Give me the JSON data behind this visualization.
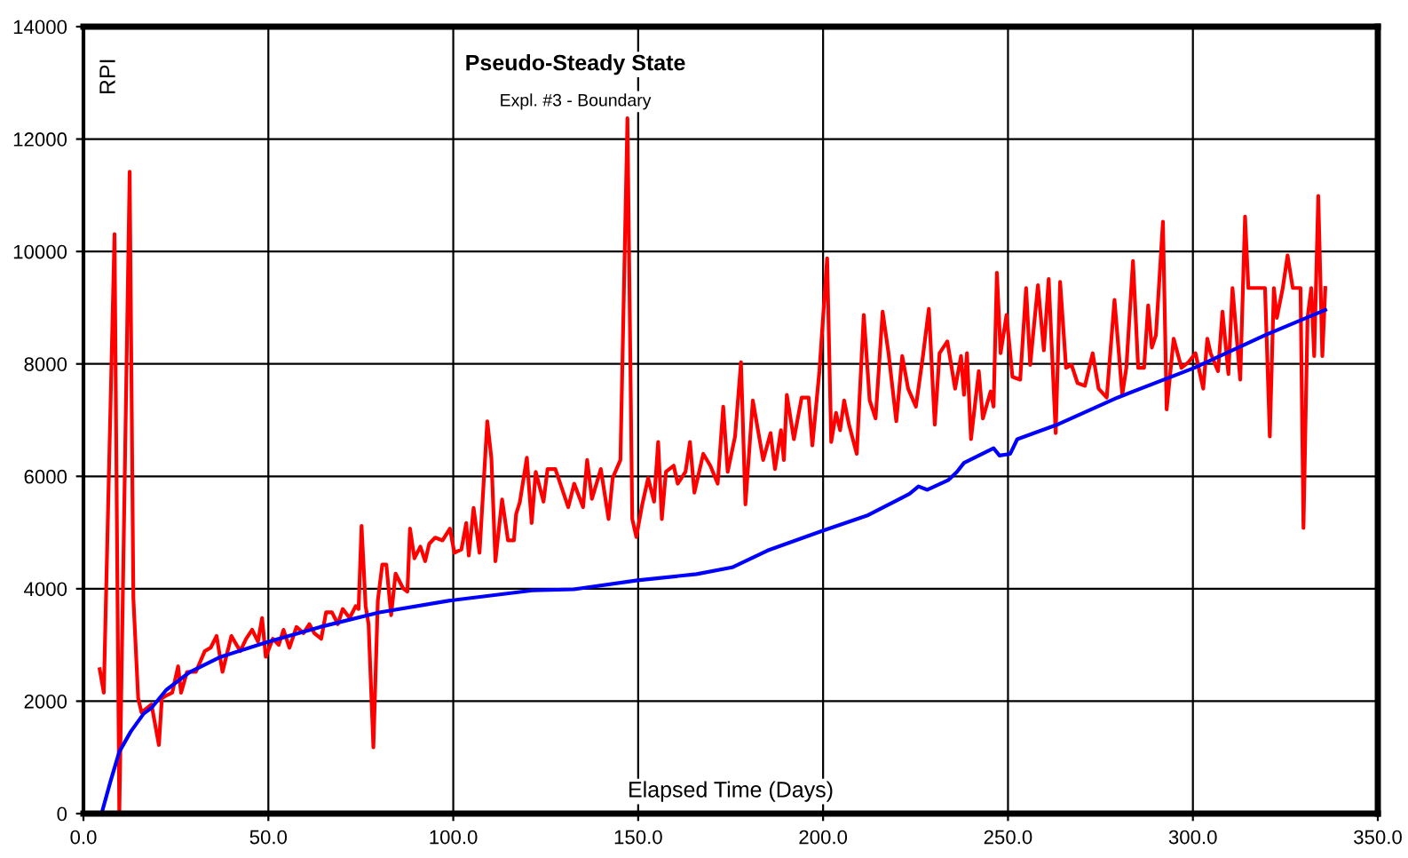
{
  "chart_data": {
    "type": "line",
    "title": "Pseudo-Steady State",
    "subtitle": "Expl. #3 - Boundary",
    "xlabel": "Elapsed Time (Days)",
    "ylabel": "RPI",
    "xlim": [
      0,
      350
    ],
    "xticks": [
      {
        "value": 0,
        "label": "0.0"
      },
      {
        "value": 50,
        "label": "50.0"
      },
      {
        "value": 100,
        "label": "100.0"
      },
      {
        "value": 150,
        "label": "150.0"
      },
      {
        "value": 200,
        "label": "200.0"
      },
      {
        "value": 250,
        "label": "250.0"
      },
      {
        "value": 300,
        "label": "300.0"
      },
      {
        "value": 350,
        "label": "350.0"
      }
    ],
    "ylim": [
      0,
      14000
    ],
    "yticks": [
      0,
      2000,
      4000,
      6000,
      8000,
      10000,
      12000,
      14000
    ],
    "grid": true,
    "legend": false,
    "marker": "none",
    "line_style": "solid",
    "series": [
      {
        "color": "#ff0000",
        "x": [
          4.4,
          5.5,
          8.4,
          9.7,
          12.5,
          13.5,
          14.8,
          15.7,
          18.4,
          20.4,
          21.2,
          22.4,
          24.0,
          25.6,
          26.4,
          28.0,
          30.4,
          32.8,
          34.4,
          36.0,
          37.6,
          40.0,
          42.4,
          44.0,
          45.6,
          47.2,
          48.3,
          49.3,
          51.2,
          52.8,
          54.1,
          55.7,
          57.6,
          59.5,
          61.1,
          62.4,
          64.3,
          65.6,
          67.2,
          68.8,
          70.1,
          72.0,
          73.6,
          74.4,
          75.2,
          76.3,
          77.1,
          78.4,
          79.6,
          80.8,
          81.9,
          83.2,
          84.4,
          86.4,
          87.6,
          88.3,
          89.5,
          91.1,
          92.4,
          93.5,
          95.1,
          97.1,
          99.1,
          100.3,
          102.2,
          103.5,
          104.2,
          105.5,
          107.1,
          109.2,
          110.3,
          111.4,
          113.2,
          114.8,
          116.4,
          117.0,
          118.0,
          119.9,
          121.2,
          122.3,
          124.4,
          125.5,
          127.6,
          131.1,
          132.7,
          135.1,
          136.2,
          137.5,
          139.9,
          142.0,
          143.1,
          145.2,
          147.1,
          148.4,
          149.5,
          151.1,
          152.7,
          154.3,
          155.4,
          156.4,
          157.5,
          159.6,
          160.7,
          162.8,
          164.0,
          165.2,
          167.6,
          169.5,
          171.5,
          173.0,
          174.2,
          176.2,
          177.8,
          179.0,
          181.0,
          183.8,
          185.8,
          187.0,
          188.6,
          189.4,
          190.2,
          192.1,
          194.2,
          196.1,
          197.1,
          199.0,
          201.1,
          202.2,
          203.5,
          204.6,
          205.7,
          207.0,
          209.1,
          211.0,
          212.6,
          214.2,
          216.1,
          217.7,
          219.8,
          221.4,
          223.0,
          225.1,
          227.0,
          228.6,
          230.2,
          231.5,
          233.6,
          235.7,
          237.3,
          238.1,
          238.9,
          240.0,
          242.1,
          243.2,
          245.3,
          246.1,
          247.0,
          248.0,
          249.6,
          251.2,
          253.3,
          254.9,
          256.0,
          258.1,
          259.7,
          261.0,
          262.9,
          264.1,
          265.7,
          267.2,
          268.8,
          270.8,
          272.9,
          274.5,
          276.7,
          278.8,
          280.9,
          282.0,
          283.8,
          285.2,
          286.8,
          287.9,
          288.9,
          290.0,
          291.9,
          292.9,
          294.8,
          296.9,
          298.8,
          300.7,
          302.8,
          303.9,
          304.8,
          306.8,
          308.0,
          309.6,
          310.7,
          312.8,
          314.1,
          315.0,
          319.5,
          320.8,
          321.9,
          322.7,
          324.3,
          325.6,
          327.0,
          329.1,
          329.9,
          331.0,
          332.0,
          332.8,
          333.9,
          335.0,
          335.8
        ],
        "values": [
          2570,
          2150,
          10310,
          0,
          11420,
          3830,
          2050,
          1800,
          1940,
          1220,
          2050,
          2100,
          2150,
          2620,
          2150,
          2520,
          2520,
          2890,
          2950,
          3160,
          2520,
          3160,
          2890,
          3110,
          3270,
          3060,
          3480,
          2790,
          3110,
          3000,
          3270,
          2950,
          3320,
          3210,
          3370,
          3210,
          3110,
          3580,
          3580,
          3370,
          3640,
          3480,
          3690,
          3640,
          5120,
          3690,
          3370,
          1180,
          3790,
          4430,
          4430,
          3530,
          4270,
          4010,
          3950,
          5070,
          4540,
          4750,
          4490,
          4800,
          4910,
          4860,
          5070,
          4640,
          4700,
          5170,
          4590,
          5440,
          4640,
          6980,
          6330,
          4490,
          5590,
          4860,
          4860,
          5330,
          5540,
          6330,
          5170,
          6080,
          5550,
          6130,
          6130,
          5450,
          5870,
          5450,
          6290,
          5600,
          6130,
          5240,
          5970,
          6290,
          12370,
          5240,
          4920,
          5500,
          5970,
          5550,
          6610,
          5240,
          6080,
          6190,
          5870,
          6080,
          6610,
          5710,
          6400,
          6190,
          5870,
          7240,
          6080,
          6710,
          8030,
          5500,
          7350,
          6290,
          6770,
          6130,
          6820,
          6290,
          7450,
          6660,
          7400,
          7400,
          6550,
          7870,
          9880,
          6610,
          7130,
          6820,
          7350,
          6920,
          6400,
          8870,
          7350,
          7030,
          8930,
          8190,
          6980,
          8140,
          7560,
          7240,
          8140,
          8980,
          6920,
          8190,
          8400,
          7560,
          8140,
          7450,
          8190,
          6660,
          7870,
          7030,
          7510,
          7240,
          9620,
          8190,
          8870,
          7770,
          7720,
          9350,
          7980,
          9400,
          8240,
          9510,
          6770,
          9460,
          7930,
          7980,
          7660,
          7610,
          8190,
          7560,
          7400,
          9140,
          7450,
          7930,
          9830,
          7930,
          7930,
          9040,
          8290,
          8510,
          10530,
          7190,
          8450,
          7930,
          8030,
          8190,
          7560,
          8450,
          8190,
          7870,
          8930,
          7820,
          9350,
          7720,
          10620,
          9350,
          9350,
          6710,
          9350,
          8820,
          9350,
          9930,
          9350,
          9350,
          5080,
          8820,
          9350,
          8140,
          10990,
          8140,
          9350
        ]
      },
      {
        "color": "#0000ff",
        "x": [
          4.9,
          7.3,
          9.7,
          12.8,
          16.3,
          18.4,
          22.4,
          28.8,
          36.8,
          49.6,
          64.0,
          80.0,
          99.1,
          121.4,
          132.6,
          149.8,
          165.8,
          175.4,
          185.0,
          199.4,
          212.2,
          223.4,
          225.8,
          228.2,
          233.8,
          236.2,
          238.1,
          246.1,
          247.7,
          250.6,
          252.5,
          263.7,
          279.6,
          300.4,
          319.5,
          335.8
        ],
        "values": [
          0,
          570,
          1100,
          1460,
          1780,
          1880,
          2200,
          2520,
          2780,
          3050,
          3320,
          3580,
          3790,
          3970,
          3990,
          4150,
          4260,
          4380,
          4680,
          5020,
          5310,
          5690,
          5820,
          5760,
          5930,
          6080,
          6240,
          6500,
          6370,
          6400,
          6660,
          6930,
          7400,
          7930,
          8510,
          8960
        ]
      }
    ]
  }
}
